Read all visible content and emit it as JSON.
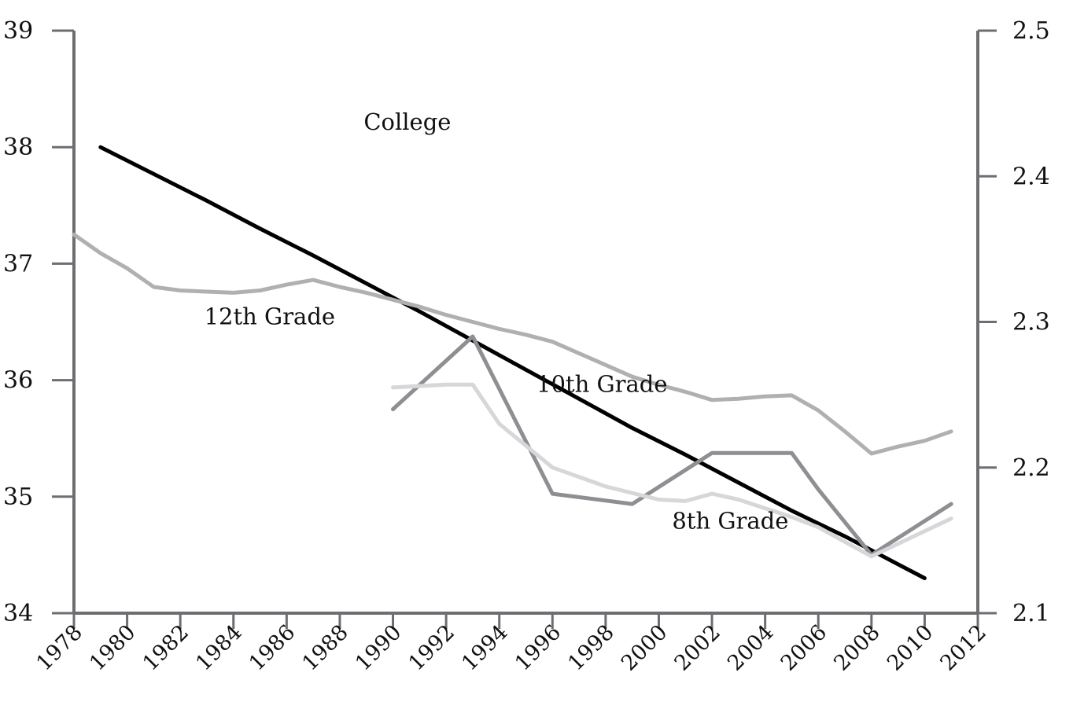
{
  "chart_data": {
    "type": "line",
    "title": "",
    "xlabel": "",
    "ylabel": "",
    "y2label": "",
    "grid": false,
    "legend": "none",
    "xlim": [
      1978,
      2012
    ],
    "x_ticks": [
      1978,
      1980,
      1982,
      1984,
      1986,
      1988,
      1990,
      1992,
      1994,
      1996,
      1998,
      2000,
      2002,
      2004,
      2006,
      2008,
      2010,
      2012
    ],
    "ylim": [
      34,
      39
    ],
    "y_ticks": [
      34,
      35,
      36,
      37,
      38,
      39
    ],
    "y2lim": [
      2.1,
      2.5
    ],
    "y2_ticks": [
      "2.1",
      "2.2",
      "2.3",
      "2.4",
      "2.5"
    ],
    "series": [
      {
        "name": "College",
        "axis": "left",
        "color": "#000000",
        "x": [
          1979,
          1981,
          1983,
          1985,
          1987,
          1989,
          1991,
          1993,
          1995,
          1997,
          1999,
          2001,
          2003,
          2005,
          2007,
          2009,
          2010
        ],
        "y": [
          38.0,
          37.77,
          37.54,
          37.3,
          37.07,
          36.83,
          36.59,
          36.34,
          36.09,
          35.84,
          35.59,
          35.36,
          35.12,
          34.88,
          34.66,
          34.42,
          34.3
        ]
      },
      {
        "name": "12th Grade",
        "axis": "left",
        "color": "#b0b0b3",
        "x": [
          1978,
          1979,
          1980,
          1981,
          1982,
          1983,
          1984,
          1985,
          1986,
          1987,
          1988,
          1989,
          1990,
          1991,
          1992,
          1993,
          1994,
          1995,
          1996,
          1997,
          1998,
          1999,
          2000,
          2001,
          2002,
          2003,
          2004,
          2005,
          2006,
          2007,
          2008,
          2009,
          2010,
          2011
        ],
        "y": [
          37.25,
          37.09,
          36.96,
          36.8,
          36.77,
          36.76,
          36.75,
          36.77,
          36.82,
          36.86,
          36.8,
          36.75,
          36.69,
          36.63,
          36.56,
          36.5,
          36.44,
          36.39,
          36.33,
          36.23,
          36.13,
          36.03,
          35.96,
          35.9,
          35.83,
          35.84,
          35.86,
          35.87,
          35.74,
          35.56,
          35.37,
          35.43,
          35.48,
          35.56
        ]
      },
      {
        "name": "10th Grade",
        "axis": "right",
        "color": "#8f8f93",
        "x": [
          1990,
          1993,
          1996,
          1999,
          2002,
          2005,
          2006,
          2008,
          2011
        ],
        "y": [
          2.24,
          2.29,
          2.182,
          2.175,
          2.21,
          2.21,
          2.185,
          2.14,
          2.175
        ]
      },
      {
        "name": "8th Grade",
        "axis": "right",
        "color": "#d7d7d9",
        "x": [
          1990,
          1992,
          1993,
          1994,
          1996,
          1998,
          2000,
          2001,
          2002,
          2003,
          2005,
          2006,
          2008,
          2011
        ],
        "y": [
          2.255,
          2.257,
          2.257,
          2.23,
          2.2,
          2.187,
          2.178,
          2.177,
          2.182,
          2.178,
          2.166,
          2.159,
          2.139,
          2.165
        ]
      }
    ],
    "annotations": [
      {
        "text": "College",
        "series": "College",
        "x": 1988.9,
        "y": 38.15
      },
      {
        "text": "12th Grade",
        "series": "12th Grade",
        "x": 1982.9,
        "y": 36.48
      },
      {
        "text": "10th Grade",
        "series": "10th Grade",
        "x": 1995.4,
        "y": 2.252
      },
      {
        "text": "8th Grade",
        "series": "8th Grade",
        "x": 2000.5,
        "y": 2.158
      }
    ]
  }
}
